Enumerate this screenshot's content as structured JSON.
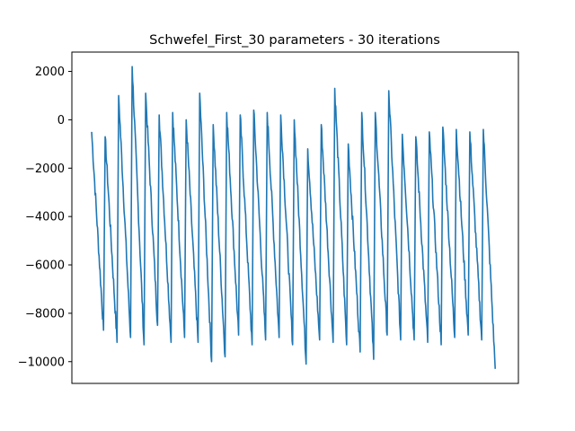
{
  "chart_data": {
    "type": "line",
    "title": "Schwefel_First_30 parameters - 30 iterations",
    "xlabel": "",
    "ylabel": "",
    "x_ticks_visible": false,
    "grid": false,
    "legend": "none",
    "ylim": [
      -10900,
      2800
    ],
    "yticks": [
      2000,
      0,
      -2000,
      -4000,
      -6000,
      -8000,
      -10000
    ],
    "ytick_labels": [
      "2000",
      "0",
      "−2000",
      "−4000",
      "−6000",
      "−8000",
      "−10000"
    ],
    "series": [
      {
        "color": "#1f77b4",
        "sawtooth_cycles": [
          {
            "start": -500,
            "end": -8700
          },
          {
            "start": -700,
            "end": -9200
          },
          {
            "start": 1000,
            "end": -9000
          },
          {
            "start": 2200,
            "end": -9300
          },
          {
            "start": 1100,
            "end": -8500
          },
          {
            "start": 200,
            "end": -9200
          },
          {
            "start": 300,
            "end": -9000
          },
          {
            "start": 0,
            "end": -9200
          },
          {
            "start": 1100,
            "end": -10000
          },
          {
            "start": -200,
            "end": -9800
          },
          {
            "start": 300,
            "end": -8900
          },
          {
            "start": 200,
            "end": -9300
          },
          {
            "start": 400,
            "end": -9100
          },
          {
            "start": 300,
            "end": -9000
          },
          {
            "start": 200,
            "end": -9300
          },
          {
            "start": 0,
            "end": -10100
          },
          {
            "start": -1200,
            "end": -9100
          },
          {
            "start": -200,
            "end": -9200
          },
          {
            "start": 1300,
            "end": -9300
          },
          {
            "start": -1000,
            "end": -9600
          },
          {
            "start": 300,
            "end": -9900
          },
          {
            "start": 300,
            "end": -8900
          },
          {
            "start": 1200,
            "end": -9100
          },
          {
            "start": -600,
            "end": -9100
          },
          {
            "start": -700,
            "end": -9200
          },
          {
            "start": -500,
            "end": -9300
          },
          {
            "start": -300,
            "end": -9000
          },
          {
            "start": -400,
            "end": -8900
          },
          {
            "start": -500,
            "end": -9100
          },
          {
            "start": -400,
            "end": -10300
          }
        ]
      }
    ]
  }
}
